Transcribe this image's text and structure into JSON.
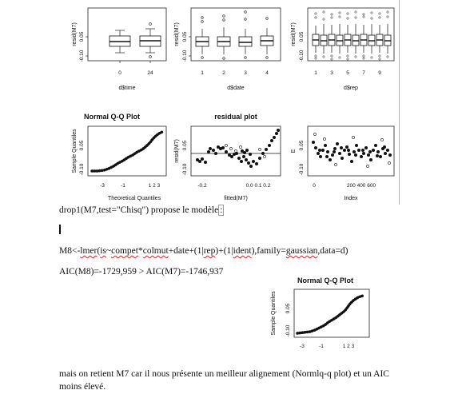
{
  "figure_top": {
    "row1": [
      {
        "ylabel": "resid(M7)",
        "xlabel": "d$time",
        "yticks": [
          "-0.10",
          "0.05"
        ],
        "xticks": [
          "0",
          "24"
        ]
      },
      {
        "ylabel": "resid(M7)",
        "xlabel": "d$date",
        "yticks": [
          "-0.10",
          "0.05"
        ],
        "xticks": [
          "1",
          "2",
          "3",
          "4"
        ]
      },
      {
        "ylabel": "resid(M7)",
        "xlabel": "d$rep",
        "yticks": [
          "-0.10",
          "0.05"
        ],
        "xticks": [
          "1",
          "3",
          "5",
          "7",
          "9"
        ]
      }
    ],
    "row2": [
      {
        "title": "Normal Q-Q Plot",
        "ylabel": "Sample Quantiles",
        "xlabel": "Theoretical Quantiles",
        "yticks": [
          "-0.10",
          "0.05"
        ],
        "xticks": [
          "-3",
          "-1",
          "1 2 3"
        ]
      },
      {
        "title": "residual plot",
        "ylabel": "resid(M7)",
        "xlabel": "fitted(M7)",
        "yticks": [
          "-0.10",
          "0.05"
        ],
        "xticks": [
          "-0.2",
          "0.0 0.1 0.2"
        ]
      },
      {
        "title": "",
        "ylabel": "E",
        "xlabel": "Index",
        "yticks": [
          "-0.10",
          "0.05"
        ],
        "xticks": [
          "0",
          "200 400 600"
        ]
      }
    ]
  },
  "text": {
    "line1_a": "drop1(M7,test=\"Chisq\") propose le modèle",
    "line1_b": ":",
    "line2_a": "M8<-",
    "line2_b": "lmer",
    "line2_c": "(",
    "line2_d": "is",
    "line2_e": "~",
    "line2_f": "compet",
    "line2_g": "*",
    "line2_h": "colmut",
    "line2_i": "+date+(1|",
    "line2_j": "rep",
    "line2_k": ")+(1|",
    "line2_l": "ident",
    "line2_m": "),family=",
    "line2_n": "gaussian",
    "line2_o": ",data=d)",
    "line3": "AIC(M8)=-1729,959 > AIC(M7)=-1746,937",
    "para2": "mais on retient M7 car il nous présente un meilleur alignement (Normlq-q plot) et un AIC moins élevé."
  },
  "figure_bottom": {
    "title": "Normal Q-Q Plot",
    "ylabel": "Sample Quantiles",
    "yticks": [
      "-0.10",
      "0.05"
    ],
    "xticks": [
      "-3",
      "-1",
      "1 2 3"
    ]
  }
}
